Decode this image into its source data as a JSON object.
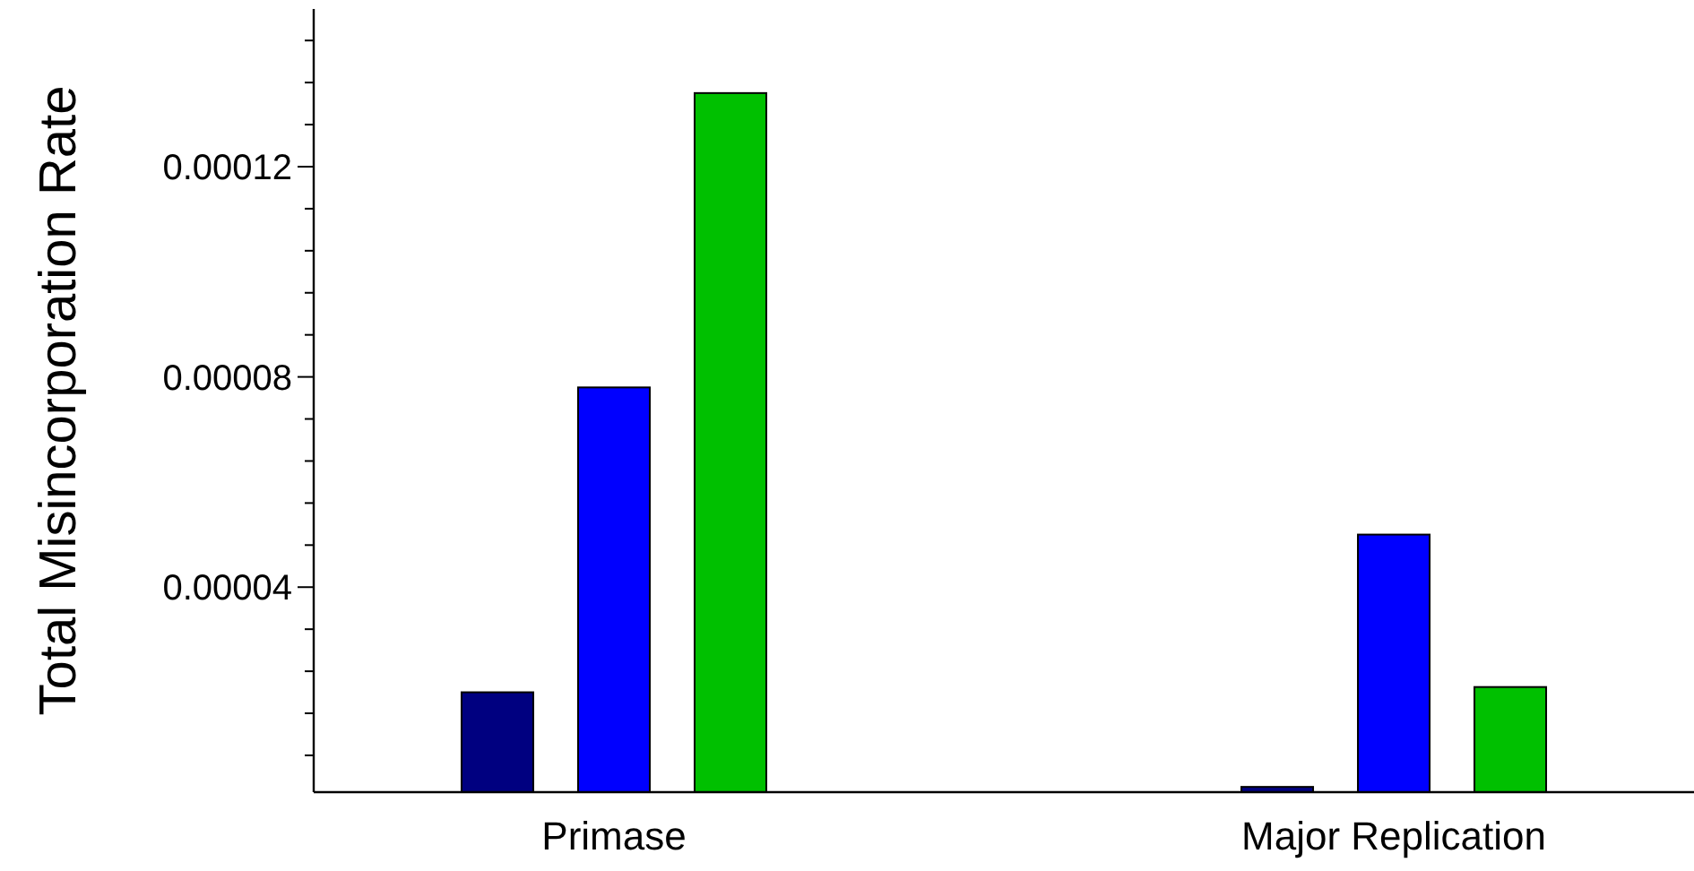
{
  "chart_data": {
    "type": "bar",
    "ylabel": "Total Misincorporation Rate",
    "categories": [
      "Primase",
      "Major Replication"
    ],
    "series": [
      {
        "color": "#000080",
        "values": [
          2e-05,
          2e-06
        ]
      },
      {
        "color": "#0000ff",
        "values": [
          7.8e-05,
          5e-05
        ]
      },
      {
        "color": "#00c000",
        "values": [
          0.000134,
          2.1e-05
        ]
      }
    ],
    "ylim": [
      1e-06,
      0.00015
    ],
    "yticks": [
      {
        "value": 8e-06,
        "label": null
      },
      {
        "value": 1.6e-05,
        "label": null
      },
      {
        "value": 2.4e-05,
        "label": null
      },
      {
        "value": 3.2e-05,
        "label": null
      },
      {
        "value": 4e-05,
        "label": "0.00004"
      },
      {
        "value": 4.8e-05,
        "label": null
      },
      {
        "value": 5.6e-05,
        "label": null
      },
      {
        "value": 6.4e-05,
        "label": null
      },
      {
        "value": 7.2e-05,
        "label": null
      },
      {
        "value": 8e-05,
        "label": "0.00008"
      },
      {
        "value": 8.8e-05,
        "label": null
      },
      {
        "value": 9.6e-05,
        "label": null
      },
      {
        "value": 0.000104,
        "label": null
      },
      {
        "value": 0.000112,
        "label": null
      },
      {
        "value": 0.00012,
        "label": "0.00012"
      },
      {
        "value": 0.000128,
        "label": null
      },
      {
        "value": 0.000136,
        "label": null
      },
      {
        "value": 0.000144,
        "label": null
      }
    ]
  }
}
